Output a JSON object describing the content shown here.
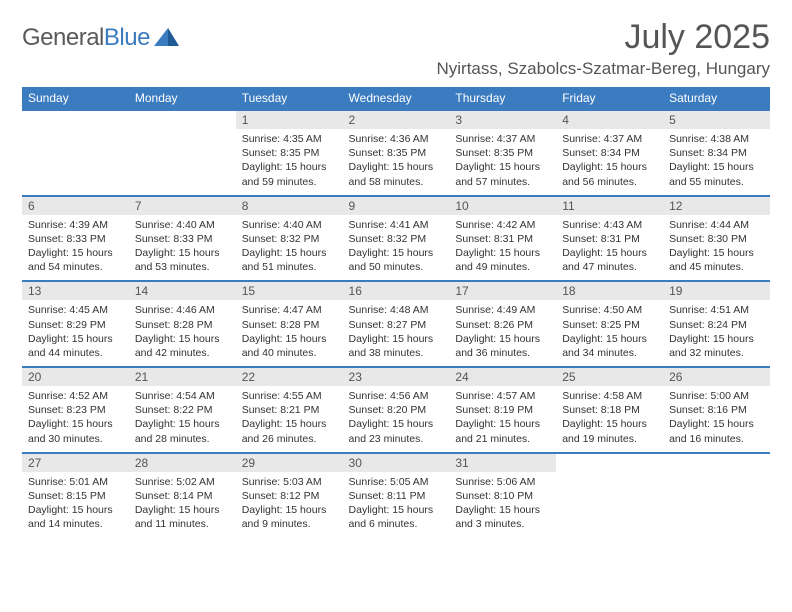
{
  "logo": {
    "word1": "General",
    "word2": "Blue"
  },
  "title": "July 2025",
  "location": "Nyirtass, Szabolcs-Szatmar-Bereg, Hungary",
  "colors": {
    "accent": "#3b7bbf",
    "header_text": "#ffffff",
    "daynum_bg": "#e8e8e8",
    "text": "#333333",
    "title_text": "#555555"
  },
  "day_headers": [
    "Sunday",
    "Monday",
    "Tuesday",
    "Wednesday",
    "Thursday",
    "Friday",
    "Saturday"
  ],
  "weeks": [
    {
      "nums": [
        "",
        "",
        "1",
        "2",
        "3",
        "4",
        "5"
      ],
      "cells": [
        null,
        null,
        {
          "sunrise": "Sunrise: 4:35 AM",
          "sunset": "Sunset: 8:35 PM",
          "day1": "Daylight: 15 hours",
          "day2": "and 59 minutes."
        },
        {
          "sunrise": "Sunrise: 4:36 AM",
          "sunset": "Sunset: 8:35 PM",
          "day1": "Daylight: 15 hours",
          "day2": "and 58 minutes."
        },
        {
          "sunrise": "Sunrise: 4:37 AM",
          "sunset": "Sunset: 8:35 PM",
          "day1": "Daylight: 15 hours",
          "day2": "and 57 minutes."
        },
        {
          "sunrise": "Sunrise: 4:37 AM",
          "sunset": "Sunset: 8:34 PM",
          "day1": "Daylight: 15 hours",
          "day2": "and 56 minutes."
        },
        {
          "sunrise": "Sunrise: 4:38 AM",
          "sunset": "Sunset: 8:34 PM",
          "day1": "Daylight: 15 hours",
          "day2": "and 55 minutes."
        }
      ]
    },
    {
      "nums": [
        "6",
        "7",
        "8",
        "9",
        "10",
        "11",
        "12"
      ],
      "cells": [
        {
          "sunrise": "Sunrise: 4:39 AM",
          "sunset": "Sunset: 8:33 PM",
          "day1": "Daylight: 15 hours",
          "day2": "and 54 minutes."
        },
        {
          "sunrise": "Sunrise: 4:40 AM",
          "sunset": "Sunset: 8:33 PM",
          "day1": "Daylight: 15 hours",
          "day2": "and 53 minutes."
        },
        {
          "sunrise": "Sunrise: 4:40 AM",
          "sunset": "Sunset: 8:32 PM",
          "day1": "Daylight: 15 hours",
          "day2": "and 51 minutes."
        },
        {
          "sunrise": "Sunrise: 4:41 AM",
          "sunset": "Sunset: 8:32 PM",
          "day1": "Daylight: 15 hours",
          "day2": "and 50 minutes."
        },
        {
          "sunrise": "Sunrise: 4:42 AM",
          "sunset": "Sunset: 8:31 PM",
          "day1": "Daylight: 15 hours",
          "day2": "and 49 minutes."
        },
        {
          "sunrise": "Sunrise: 4:43 AM",
          "sunset": "Sunset: 8:31 PM",
          "day1": "Daylight: 15 hours",
          "day2": "and 47 minutes."
        },
        {
          "sunrise": "Sunrise: 4:44 AM",
          "sunset": "Sunset: 8:30 PM",
          "day1": "Daylight: 15 hours",
          "day2": "and 45 minutes."
        }
      ]
    },
    {
      "nums": [
        "13",
        "14",
        "15",
        "16",
        "17",
        "18",
        "19"
      ],
      "cells": [
        {
          "sunrise": "Sunrise: 4:45 AM",
          "sunset": "Sunset: 8:29 PM",
          "day1": "Daylight: 15 hours",
          "day2": "and 44 minutes."
        },
        {
          "sunrise": "Sunrise: 4:46 AM",
          "sunset": "Sunset: 8:28 PM",
          "day1": "Daylight: 15 hours",
          "day2": "and 42 minutes."
        },
        {
          "sunrise": "Sunrise: 4:47 AM",
          "sunset": "Sunset: 8:28 PM",
          "day1": "Daylight: 15 hours",
          "day2": "and 40 minutes."
        },
        {
          "sunrise": "Sunrise: 4:48 AM",
          "sunset": "Sunset: 8:27 PM",
          "day1": "Daylight: 15 hours",
          "day2": "and 38 minutes."
        },
        {
          "sunrise": "Sunrise: 4:49 AM",
          "sunset": "Sunset: 8:26 PM",
          "day1": "Daylight: 15 hours",
          "day2": "and 36 minutes."
        },
        {
          "sunrise": "Sunrise: 4:50 AM",
          "sunset": "Sunset: 8:25 PM",
          "day1": "Daylight: 15 hours",
          "day2": "and 34 minutes."
        },
        {
          "sunrise": "Sunrise: 4:51 AM",
          "sunset": "Sunset: 8:24 PM",
          "day1": "Daylight: 15 hours",
          "day2": "and 32 minutes."
        }
      ]
    },
    {
      "nums": [
        "20",
        "21",
        "22",
        "23",
        "24",
        "25",
        "26"
      ],
      "cells": [
        {
          "sunrise": "Sunrise: 4:52 AM",
          "sunset": "Sunset: 8:23 PM",
          "day1": "Daylight: 15 hours",
          "day2": "and 30 minutes."
        },
        {
          "sunrise": "Sunrise: 4:54 AM",
          "sunset": "Sunset: 8:22 PM",
          "day1": "Daylight: 15 hours",
          "day2": "and 28 minutes."
        },
        {
          "sunrise": "Sunrise: 4:55 AM",
          "sunset": "Sunset: 8:21 PM",
          "day1": "Daylight: 15 hours",
          "day2": "and 26 minutes."
        },
        {
          "sunrise": "Sunrise: 4:56 AM",
          "sunset": "Sunset: 8:20 PM",
          "day1": "Daylight: 15 hours",
          "day2": "and 23 minutes."
        },
        {
          "sunrise": "Sunrise: 4:57 AM",
          "sunset": "Sunset: 8:19 PM",
          "day1": "Daylight: 15 hours",
          "day2": "and 21 minutes."
        },
        {
          "sunrise": "Sunrise: 4:58 AM",
          "sunset": "Sunset: 8:18 PM",
          "day1": "Daylight: 15 hours",
          "day2": "and 19 minutes."
        },
        {
          "sunrise": "Sunrise: 5:00 AM",
          "sunset": "Sunset: 8:16 PM",
          "day1": "Daylight: 15 hours",
          "day2": "and 16 minutes."
        }
      ]
    },
    {
      "nums": [
        "27",
        "28",
        "29",
        "30",
        "31",
        "",
        ""
      ],
      "cells": [
        {
          "sunrise": "Sunrise: 5:01 AM",
          "sunset": "Sunset: 8:15 PM",
          "day1": "Daylight: 15 hours",
          "day2": "and 14 minutes."
        },
        {
          "sunrise": "Sunrise: 5:02 AM",
          "sunset": "Sunset: 8:14 PM",
          "day1": "Daylight: 15 hours",
          "day2": "and 11 minutes."
        },
        {
          "sunrise": "Sunrise: 5:03 AM",
          "sunset": "Sunset: 8:12 PM",
          "day1": "Daylight: 15 hours",
          "day2": "and 9 minutes."
        },
        {
          "sunrise": "Sunrise: 5:05 AM",
          "sunset": "Sunset: 8:11 PM",
          "day1": "Daylight: 15 hours",
          "day2": "and 6 minutes."
        },
        {
          "sunrise": "Sunrise: 5:06 AM",
          "sunset": "Sunset: 8:10 PM",
          "day1": "Daylight: 15 hours",
          "day2": "and 3 minutes."
        },
        null,
        null
      ]
    }
  ]
}
